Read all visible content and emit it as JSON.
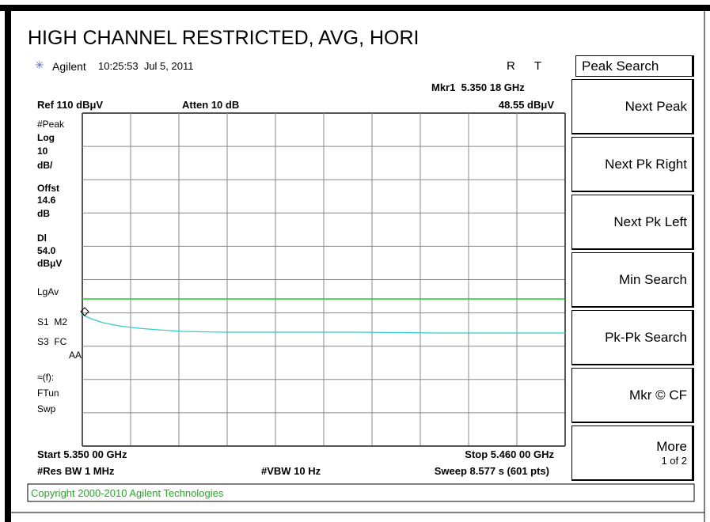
{
  "title": "HIGH CHANNEL RESTRICTED, AVG, HORI",
  "header": {
    "brand": "Agilent",
    "time": "10:25:53  Jul 5, 2011",
    "r": "R",
    "t": "T"
  },
  "marker": {
    "label": "Mkr1  5.350 18 GHz",
    "value": "48.55 dBμV"
  },
  "ref": "Ref 110 dBμV",
  "atten": "Atten 10 dB",
  "left_labels": [
    "#Peak",
    "Log",
    "10",
    "dB/",
    "Offst",
    "14.6",
    "dB",
    "Dl",
    "54.0",
    "dBμV",
    "LgAv",
    "S1  M2",
    "S3  FC",
    "AA",
    "≈(f):",
    "FTun",
    "Swp"
  ],
  "footer": {
    "start": "Start 5.350 00 GHz",
    "stop": "Stop 5.460 00 GHz",
    "res_bw": "#Res BW 1 MHz",
    "vbw": "#VBW 10 Hz",
    "sweep": "Sweep 8.577 s (601 pts)"
  },
  "softkeys": {
    "title": "Peak Search",
    "buttons": [
      "Next Peak",
      "Next Pk Right",
      "Next Pk Left",
      "Min Search",
      "Pk-Pk Search",
      "Mkr © CF",
      "More"
    ],
    "more_sub": "1 of 2"
  },
  "copyright": "Copyright 2000-2010 Agilent Technologies"
}
